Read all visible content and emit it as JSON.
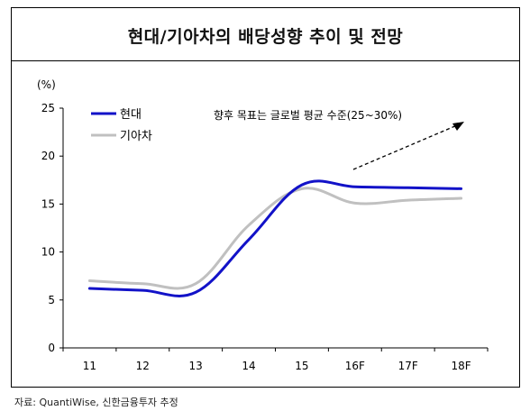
{
  "title": "현대/기아차의 배당성향 추이 및 전망",
  "source": "자료: QuantiWise, 신한금융투자 추정",
  "chart_data": {
    "type": "line",
    "title": "현대/기아차의 배당성향 추이 및 전망",
    "ylabel": "(%)",
    "xlabel": "",
    "categories": [
      "11",
      "12",
      "13",
      "14",
      "15",
      "16F",
      "17F",
      "18F"
    ],
    "ylim": [
      0,
      25
    ],
    "yticks": [
      0,
      5,
      10,
      15,
      20,
      25
    ],
    "grid": false,
    "legend": "top-left",
    "annotation": "향후 목표는 글로벌 평균 수준(25~30%)",
    "series": [
      {
        "name": "현대",
        "color": "#1212c8",
        "values": [
          6.2,
          6.0,
          5.8,
          11.3,
          17.0,
          16.8,
          16.7,
          16.6
        ]
      },
      {
        "name": "기아차",
        "color": "#c0c0c0",
        "values": [
          7.0,
          6.7,
          6.7,
          12.8,
          16.6,
          15.1,
          15.4,
          15.6
        ]
      }
    ]
  }
}
